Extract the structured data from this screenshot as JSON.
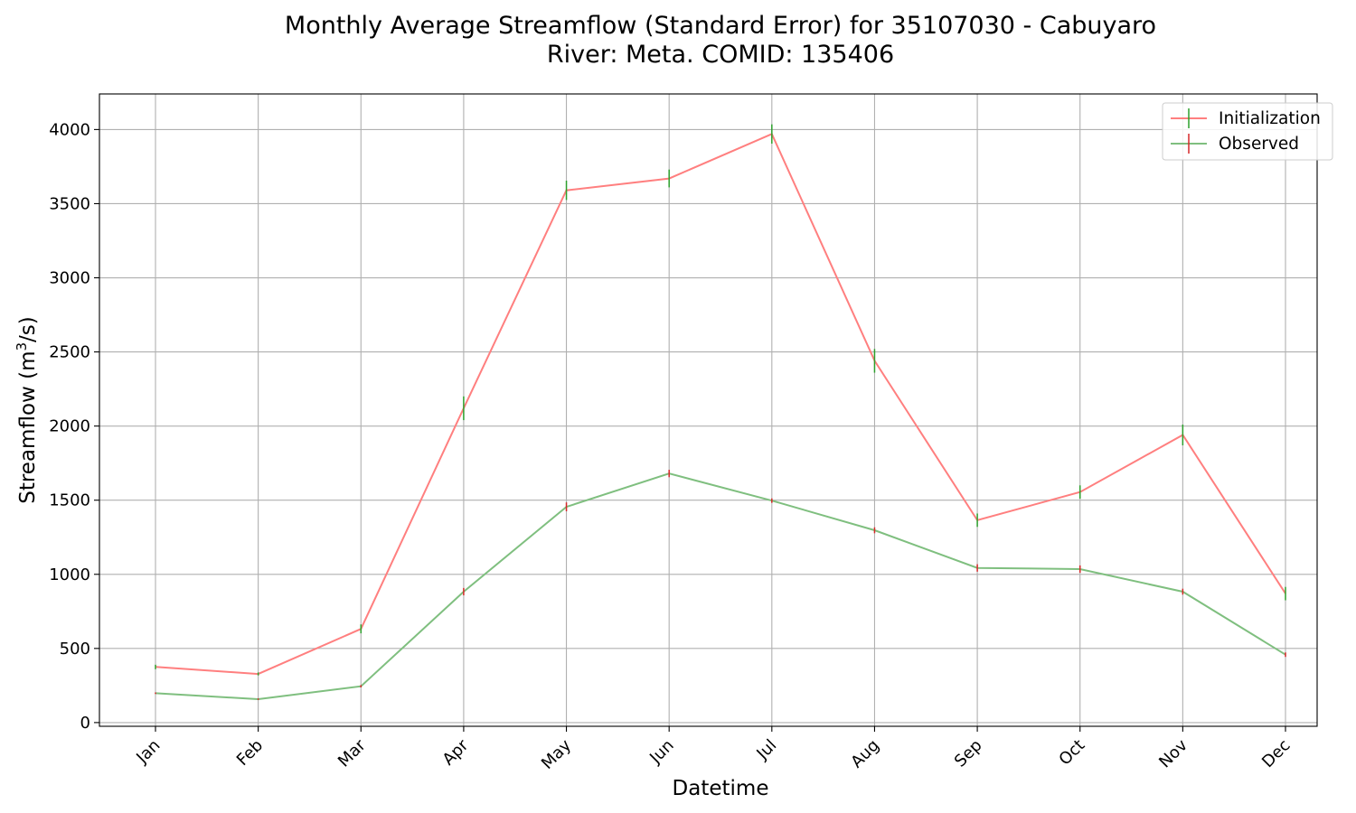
{
  "chart_data": {
    "type": "line",
    "title_line1": "Monthly Average Streamflow (Standard Error) for 35107030 - Cabuyaro",
    "title_line2": "River: Meta. COMID: 135406",
    "xlabel": "Datetime",
    "ylabel_main": "Streamflow (m",
    "ylabel_sup": "3",
    "ylabel_end": "/s)",
    "categories": [
      "Jan",
      "Feb",
      "Mar",
      "Apr",
      "May",
      "Jun",
      "Jul",
      "Aug",
      "Sep",
      "Oct",
      "Nov",
      "Dec"
    ],
    "yticks": [
      "0",
      "500",
      "1000",
      "1500",
      "2000",
      "2500",
      "3000",
      "3500",
      "4000"
    ],
    "ylim": [
      -25,
      4240
    ],
    "grid": true,
    "legend_position": "top-right",
    "series": [
      {
        "name": "Initialization",
        "line_color": "#ff7f7f",
        "error_color": "#2ca02c",
        "values": [
          375,
          328,
          632,
          2120,
          3590,
          3670,
          3970,
          2440,
          1365,
          1555,
          1940,
          870
        ],
        "errors": [
          15,
          10,
          30,
          80,
          65,
          60,
          65,
          80,
          45,
          45,
          70,
          45
        ]
      },
      {
        "name": "Observed",
        "line_color": "#7fbf7f",
        "error_color": "#d62728",
        "values": [
          198,
          158,
          245,
          883,
          1455,
          1680,
          1497,
          1297,
          1043,
          1035,
          883,
          458
        ],
        "errors": [
          5,
          5,
          8,
          25,
          30,
          25,
          15,
          20,
          25,
          25,
          20,
          15
        ]
      }
    ]
  }
}
